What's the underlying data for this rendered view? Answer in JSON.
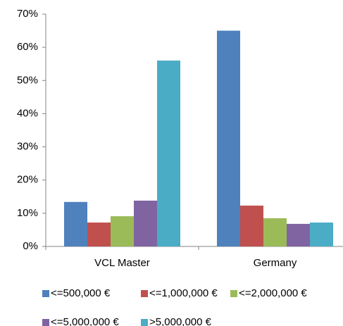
{
  "chart_data": {
    "type": "bar",
    "categories": [
      "VCL Master",
      "Germany"
    ],
    "series": [
      {
        "name": "<=500,000 €",
        "color": "#4f81bd",
        "values": [
          13.4,
          65
        ]
      },
      {
        "name": "<=1,000,000 €",
        "color": "#c0504d",
        "values": [
          7.2,
          12.3
        ]
      },
      {
        "name": "<=2,000,000 €",
        "color": "#9bbb59",
        "values": [
          9.1,
          8.5
        ]
      },
      {
        "name": "<=5,000,000 €",
        "color": "#8064a2",
        "values": [
          13.8,
          6.8
        ]
      },
      {
        "name": ">5,000,000 €",
        "color": "#4bacc6",
        "values": [
          56,
          7.2
        ]
      }
    ],
    "ylim": [
      0,
      70
    ],
    "yticks": [
      {
        "value": 0,
        "label": "0%"
      },
      {
        "value": 10,
        "label": "10%"
      },
      {
        "value": 20,
        "label": "20%"
      },
      {
        "value": 30,
        "label": "30%"
      },
      {
        "value": 40,
        "label": "40%"
      },
      {
        "value": 50,
        "label": "50%"
      },
      {
        "value": 60,
        "label": "60%"
      },
      {
        "value": 70,
        "label": "70%"
      }
    ],
    "grid": false
  }
}
